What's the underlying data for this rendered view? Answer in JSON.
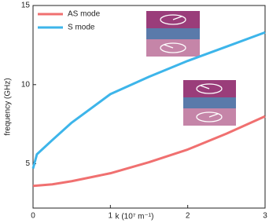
{
  "chart_data": {
    "type": "line",
    "x_label": "k (10⁷ m⁻¹)",
    "y_label": "frequency (GHz)",
    "x": [
      0,
      0.05,
      0.25,
      0.5,
      1,
      1.5,
      2,
      2.5,
      3
    ],
    "series": [
      {
        "name": "AS mode",
        "color": "#f07070",
        "values": [
          3.6,
          3.62,
          3.7,
          3.9,
          4.4,
          5.1,
          5.9,
          6.9,
          8.0
        ]
      },
      {
        "name": "S mode",
        "color": "#3db5ea",
        "values": [
          4.7,
          5.6,
          6.5,
          7.6,
          9.4,
          10.5,
          11.5,
          12.4,
          13.3
        ]
      }
    ],
    "xlim": [
      0,
      3
    ],
    "xticks": [
      0,
      1,
      2,
      3
    ],
    "ylim": [
      2.2,
      15
    ],
    "yticks": [
      5,
      10,
      15
    ],
    "legend": "upper-left"
  }
}
